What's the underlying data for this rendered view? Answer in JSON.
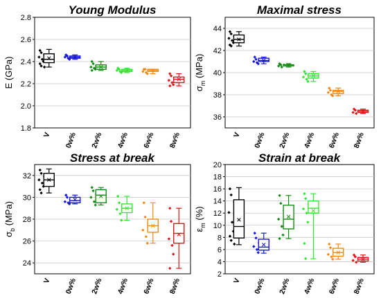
{
  "categories": [
    "V",
    "0w%",
    "2w%",
    "4w%",
    "6w%",
    "8w%"
  ],
  "colors": [
    "#000000",
    "#1515d6",
    "#148a14",
    "#33e633",
    "#f08a16",
    "#e01414"
  ],
  "chart_data": [
    {
      "type": "box",
      "title": "Young Modulus",
      "ylabel": "E (GPa)",
      "ylabel_main": "E (GPa)",
      "ylabel_sub": "",
      "ylabel_tail": "",
      "ylim": [
        1.8,
        2.8
      ],
      "yticks": [
        "1.8",
        "2.0",
        "2.2",
        "2.4",
        "2.6",
        "2.8"
      ],
      "categories": [
        "V",
        "0w%",
        "2w%",
        "4w%",
        "6w%",
        "8w%"
      ],
      "series": [
        {
          "box": {
            "min": 2.35,
            "q1": 2.39,
            "median": 2.42,
            "q3": 2.47,
            "max": 2.51,
            "mean": 2.43
          },
          "points": [
            2.5,
            2.48,
            2.46,
            2.44,
            2.42,
            2.4,
            2.38,
            2.36,
            2.35
          ]
        },
        {
          "box": {
            "min": 2.42,
            "q1": 2.43,
            "median": 2.44,
            "q3": 2.45,
            "max": 2.46,
            "mean": 2.44
          },
          "points": [
            2.46,
            2.45,
            2.44,
            2.44,
            2.43,
            2.42
          ]
        },
        {
          "box": {
            "min": 2.32,
            "q1": 2.33,
            "median": 2.35,
            "q3": 2.37,
            "max": 2.4,
            "mean": 2.35
          },
          "points": [
            2.4,
            2.38,
            2.36,
            2.35,
            2.34,
            2.33,
            2.32
          ]
        },
        {
          "box": {
            "min": 2.3,
            "q1": 2.31,
            "median": 2.32,
            "q3": 2.33,
            "max": 2.34,
            "mean": 2.32
          },
          "points": [
            2.34,
            2.33,
            2.32,
            2.32,
            2.31,
            2.3
          ]
        },
        {
          "box": {
            "min": 2.29,
            "q1": 2.31,
            "median": 2.32,
            "q3": 2.33,
            "max": 2.33,
            "mean": 2.32
          },
          "points": [
            2.33,
            2.33,
            2.32,
            2.31,
            2.3,
            2.29
          ]
        },
        {
          "box": {
            "min": 2.18,
            "q1": 2.21,
            "median": 2.24,
            "q3": 2.26,
            "max": 2.29,
            "mean": 2.24
          },
          "points": [
            2.29,
            2.27,
            2.25,
            2.23,
            2.21,
            2.19,
            2.18
          ]
        }
      ]
    },
    {
      "type": "box",
      "title": "Maximal stress",
      "ylabel": "σm (MPa)",
      "ylabel_main": "σ",
      "ylabel_sub": "m",
      "ylabel_tail": " (MPa)",
      "ylim": [
        35,
        45
      ],
      "yticks": [
        "36",
        "38",
        "40",
        "42",
        "44"
      ],
      "categories": [
        "V",
        "0w%",
        "2w%",
        "4w%",
        "6w%",
        "8w%"
      ],
      "series": [
        {
          "box": {
            "min": 42.4,
            "q1": 42.7,
            "median": 43.0,
            "q3": 43.4,
            "max": 43.7,
            "mean": 43.0
          },
          "points": [
            43.7,
            43.5,
            43.3,
            43.1,
            42.9,
            42.7,
            42.5,
            42.4
          ]
        },
        {
          "box": {
            "min": 40.8,
            "q1": 41.0,
            "median": 41.1,
            "q3": 41.3,
            "max": 41.4,
            "mean": 41.1
          },
          "points": [
            41.4,
            41.2,
            41.1,
            41.0,
            40.9,
            40.8
          ]
        },
        {
          "box": {
            "min": 40.5,
            "q1": 40.6,
            "median": 40.7,
            "q3": 40.7,
            "max": 40.8,
            "mean": 40.7
          },
          "points": [
            40.8,
            40.7,
            40.7,
            40.6,
            40.5
          ]
        },
        {
          "box": {
            "min": 39.2,
            "q1": 39.5,
            "median": 39.7,
            "q3": 39.9,
            "max": 40.1,
            "mean": 39.7
          },
          "points": [
            40.1,
            39.9,
            39.8,
            39.6,
            39.4,
            39.2
          ]
        },
        {
          "box": {
            "min": 37.9,
            "q1": 38.1,
            "median": 38.3,
            "q3": 38.4,
            "max": 38.6,
            "mean": 38.3
          },
          "points": [
            38.6,
            38.4,
            38.3,
            38.2,
            38.0,
            37.9
          ]
        },
        {
          "box": {
            "min": 36.3,
            "q1": 36.4,
            "median": 36.5,
            "q3": 36.6,
            "max": 36.7,
            "mean": 36.5
          },
          "points": [
            36.7,
            36.6,
            36.5,
            36.4,
            36.3
          ]
        }
      ]
    },
    {
      "type": "box",
      "title": "Stress at break",
      "ylabel": "σb (MPa)",
      "ylabel_main": "σ",
      "ylabel_sub": "b",
      "ylabel_tail": " (MPa)",
      "ylim": [
        23,
        33
      ],
      "yticks": [
        "24",
        "26",
        "28",
        "30",
        "32"
      ],
      "categories": [
        "V",
        "0w%",
        "2w%",
        "4w%",
        "6w%",
        "8w%"
      ],
      "series": [
        {
          "box": {
            "min": 30.4,
            "q1": 31.0,
            "median": 31.6,
            "q3": 32.2,
            "max": 32.6,
            "mean": 31.6
          },
          "points": [
            32.5,
            32.2,
            31.9,
            31.6,
            31.3,
            31.0,
            30.7,
            30.4
          ]
        },
        {
          "box": {
            "min": 29.4,
            "q1": 29.5,
            "median": 29.7,
            "q3": 30.0,
            "max": 30.2,
            "mean": 29.8
          },
          "points": [
            30.2,
            30.0,
            29.8,
            29.6,
            29.5,
            29.4
          ]
        },
        {
          "box": {
            "min": 29.3,
            "q1": 29.5,
            "median": 30.2,
            "q3": 30.7,
            "max": 30.9,
            "mean": 30.1
          },
          "points": [
            30.9,
            30.6,
            30.3,
            30.0,
            29.6,
            29.3
          ]
        },
        {
          "box": {
            "min": 27.9,
            "q1": 28.6,
            "median": 29.0,
            "q3": 29.4,
            "max": 30.1,
            "mean": 29.0
          },
          "points": [
            30.1,
            29.5,
            29.2,
            28.9,
            28.5,
            27.9
          ]
        },
        {
          "box": {
            "min": 25.8,
            "q1": 26.8,
            "median": 27.4,
            "q3": 28.0,
            "max": 29.5,
            "mean": 27.4
          },
          "points": [
            29.5,
            28.2,
            27.6,
            27.0,
            26.4,
            25.8
          ]
        },
        {
          "box": {
            "min": 23.5,
            "q1": 25.8,
            "median": 26.7,
            "q3": 27.6,
            "max": 29.0,
            "mean": 26.6
          },
          "points": [
            29.0,
            27.8,
            27.0,
            26.2,
            25.6,
            24.8,
            23.5
          ]
        }
      ]
    },
    {
      "type": "box",
      "title": "Strain at break",
      "ylabel": "εm (%)",
      "ylabel_main": "ε",
      "ylabel_sub": "m",
      "ylabel_tail": " (%)",
      "ylim": [
        2,
        20
      ],
      "yticks": [
        "2",
        "4",
        "6",
        "8",
        "10",
        "12",
        "14",
        "16",
        "18",
        "20"
      ],
      "categories": [
        "V",
        "0w%",
        "2w%",
        "4w%",
        "6w%",
        "8w%"
      ],
      "series": [
        {
          "box": {
            "min": 6.8,
            "q1": 7.9,
            "median": 9.8,
            "q3": 14.2,
            "max": 16.2,
            "mean": 10.9
          },
          "points": [
            16.0,
            15.0,
            13.8,
            12.1,
            10.5,
            9.0,
            8.2,
            7.5,
            6.9
          ]
        },
        {
          "box": {
            "min": 5.4,
            "q1": 5.9,
            "median": 6.4,
            "q3": 7.7,
            "max": 8.7,
            "mean": 6.8
          },
          "points": [
            8.7,
            7.9,
            7.1,
            6.5,
            6.0,
            5.5
          ]
        },
        {
          "box": {
            "min": 7.8,
            "q1": 9.4,
            "median": 11.0,
            "q3": 13.3,
            "max": 14.9,
            "mean": 11.4
          },
          "points": [
            14.9,
            13.6,
            12.4,
            11.0,
            9.8,
            8.4,
            7.8
          ]
        },
        {
          "box": {
            "min": 4.5,
            "q1": 12.0,
            "median": 12.8,
            "q3": 14.0,
            "max": 15.2,
            "mean": 12.4
          },
          "points": [
            15.2,
            14.4,
            13.5,
            12.7,
            12.0,
            10.5,
            7.0,
            4.5
          ]
        },
        {
          "box": {
            "min": 4.4,
            "q1": 4.9,
            "median": 5.5,
            "q3": 6.2,
            "max": 6.9,
            "mean": 5.5
          },
          "points": [
            6.9,
            6.3,
            5.7,
            5.2,
            4.8,
            4.4
          ]
        },
        {
          "box": {
            "min": 3.9,
            "q1": 4.1,
            "median": 4.4,
            "q3": 4.7,
            "max": 5.1,
            "mean": 4.4
          },
          "points": [
            5.1,
            4.8,
            4.5,
            4.2,
            3.9
          ]
        }
      ]
    }
  ]
}
